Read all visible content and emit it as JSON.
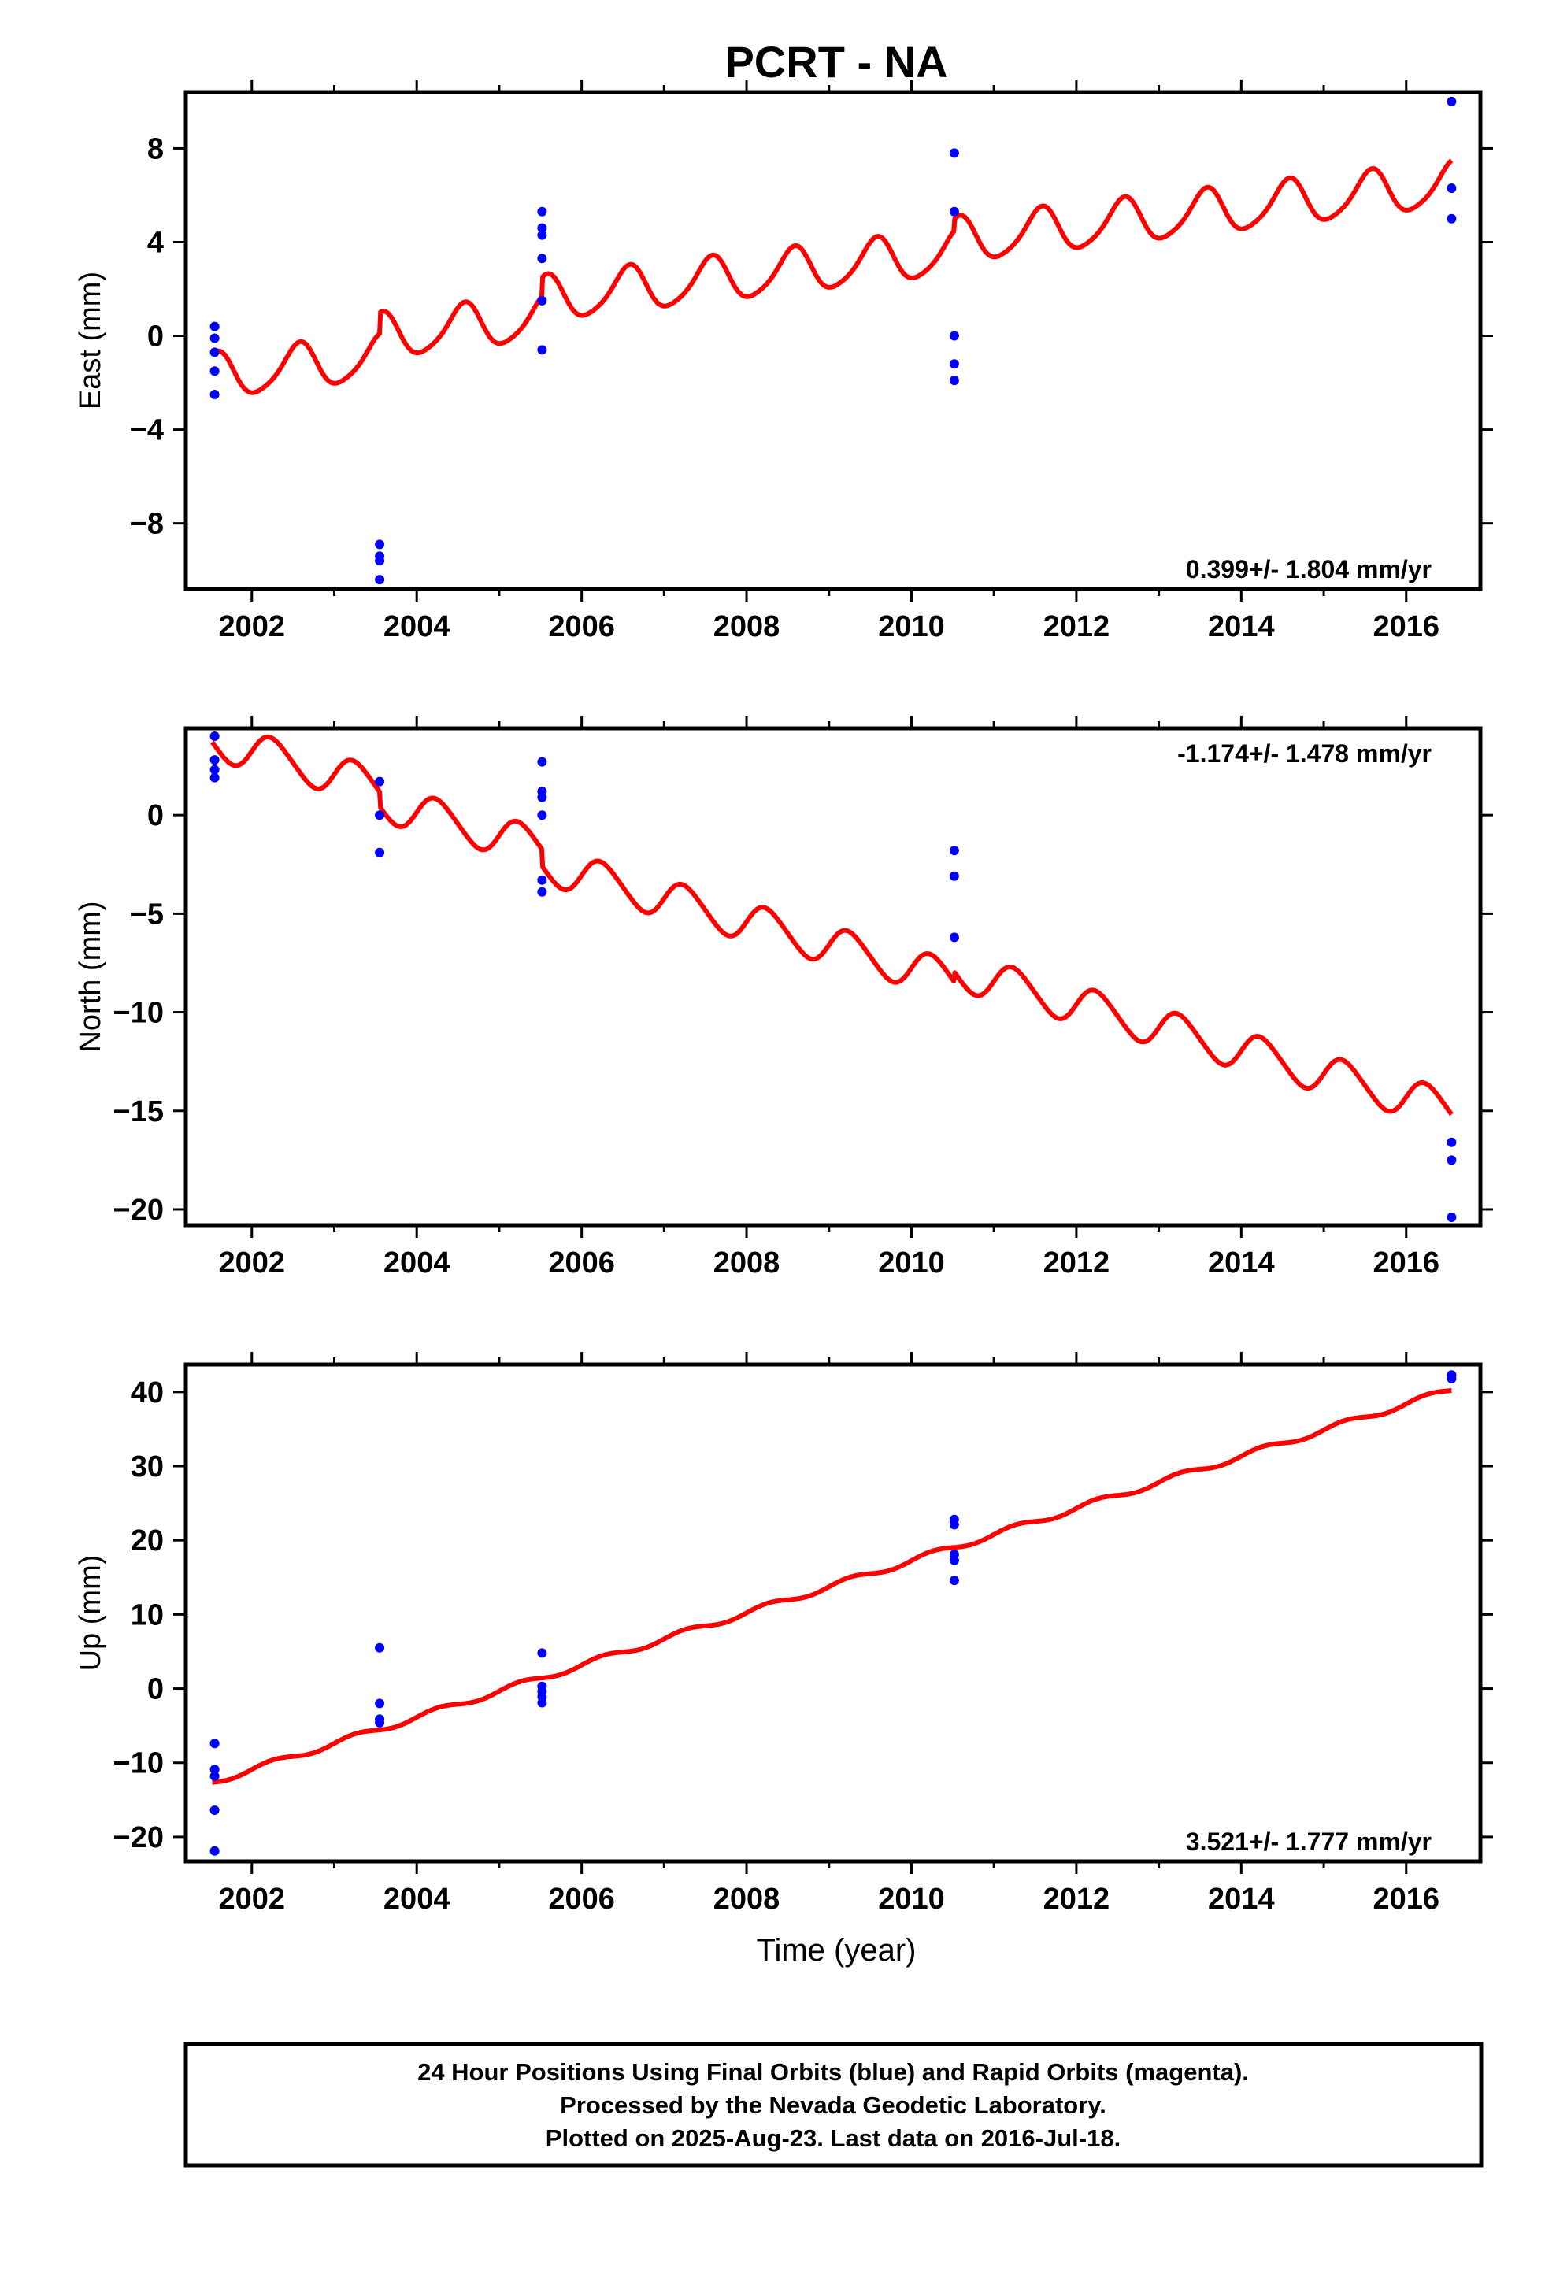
{
  "title": "PCRT - NA",
  "x_axis_label": "Time (year)",
  "footer": {
    "line1": "24 Hour Positions Using Final Orbits (blue) and Rapid Orbits (magenta).",
    "line2": "Processed by the Nevada Geodetic Laboratory.",
    "line3": "Plotted on 2025-Aug-23. Last data on 2016-Jul-18."
  },
  "colors": {
    "data_points": "#0000ff",
    "model_line": "#ff0000",
    "frame": "#000000"
  },
  "chart_data": [
    {
      "type": "scatter",
      "panel": "east",
      "ylabel": "East (mm)",
      "rate_text": "0.399+/- 1.804 mm/yr",
      "rate_position": "bottom-right",
      "xlim": [
        2001.2,
        2016.9
      ],
      "ylim": [
        -10.8,
        10.4
      ],
      "xticks": [
        2002,
        2004,
        2006,
        2008,
        2010,
        2012,
        2014,
        2016
      ],
      "xtick_labels": [
        "2002",
        "2004",
        "2006",
        "2008",
        "2010",
        "2012",
        "2014",
        "2016"
      ],
      "yticks": [
        -8,
        -4,
        0,
        4,
        8
      ],
      "ytick_labels": [
        "−8",
        "−4",
        "0",
        "4",
        "8"
      ],
      "points": [
        [
          2001.55,
          0.4
        ],
        [
          2001.55,
          -0.1
        ],
        [
          2001.55,
          -0.7
        ],
        [
          2001.55,
          -1.5
        ],
        [
          2001.55,
          -2.5
        ],
        [
          2003.55,
          -8.9
        ],
        [
          2003.55,
          -9.4
        ],
        [
          2003.55,
          -9.6
        ],
        [
          2003.55,
          -10.4
        ],
        [
          2005.52,
          5.3
        ],
        [
          2005.52,
          4.6
        ],
        [
          2005.52,
          4.3
        ],
        [
          2005.52,
          3.3
        ],
        [
          2005.52,
          1.5
        ],
        [
          2005.52,
          -0.6
        ],
        [
          2010.52,
          7.8
        ],
        [
          2010.52,
          5.3
        ],
        [
          2010.52,
          0.0
        ],
        [
          2010.52,
          -1.2
        ],
        [
          2010.52,
          -1.9
        ],
        [
          2016.55,
          10.0
        ],
        [
          2016.55,
          6.3
        ],
        [
          2016.55,
          5.0
        ]
      ],
      "model": {
        "x_range": [
          2001.52,
          2016.55
        ],
        "steps": [
          {
            "start": 2001.52,
            "end": 2003.55,
            "offset": -1.75
          },
          {
            "start": 2003.55,
            "end": 2005.52,
            "offset": -0.85
          },
          {
            "start": 2005.52,
            "end": 2010.52,
            "offset": -0.05
          },
          {
            "start": 2010.52,
            "end": 2016.55,
            "offset": 0.45
          }
        ],
        "rate_per_year": 0.399,
        "reference_year": 2001.52,
        "annual_amplitude": 0.95,
        "annual_phase": -2.0,
        "semiannual_amplitude": 0.15,
        "semiannual_phase": 0.0
      }
    },
    {
      "type": "scatter",
      "panel": "north",
      "ylabel": "North (mm)",
      "rate_text": "-1.174+/- 1.478 mm/yr",
      "rate_position": "top-right",
      "xlim": [
        2001.2,
        2016.9
      ],
      "ylim": [
        -20.8,
        4.4
      ],
      "xticks": [
        2002,
        2004,
        2006,
        2008,
        2010,
        2012,
        2014,
        2016
      ],
      "xtick_labels": [
        "2002",
        "2004",
        "2006",
        "2008",
        "2010",
        "2012",
        "2014",
        "2016"
      ],
      "yticks": [
        -20,
        -15,
        -10,
        -5,
        0
      ],
      "ytick_labels": [
        "−20",
        "−15",
        "−10",
        "−5",
        "0"
      ],
      "points": [
        [
          2001.55,
          4.0
        ],
        [
          2001.55,
          2.8
        ],
        [
          2001.55,
          2.3
        ],
        [
          2001.55,
          1.9
        ],
        [
          2003.55,
          1.7
        ],
        [
          2003.55,
          0.0
        ],
        [
          2003.55,
          -1.9
        ],
        [
          2005.52,
          2.7
        ],
        [
          2005.52,
          1.2
        ],
        [
          2005.52,
          0.9
        ],
        [
          2005.52,
          0.0
        ],
        [
          2005.52,
          -3.3
        ],
        [
          2005.52,
          -3.9
        ],
        [
          2010.52,
          -1.8
        ],
        [
          2010.52,
          -3.1
        ],
        [
          2010.52,
          -6.2
        ],
        [
          2016.55,
          -16.6
        ],
        [
          2016.55,
          -17.5
        ],
        [
          2016.55,
          -20.4
        ]
      ],
      "model": {
        "x_range": [
          2001.52,
          2016.55
        ],
        "steps": [
          {
            "start": 2001.52,
            "end": 2003.55,
            "offset": 3.8
          },
          {
            "start": 2003.55,
            "end": 2005.52,
            "offset": 3.05
          },
          {
            "start": 2005.52,
            "end": 2010.52,
            "offset": 2.2
          },
          {
            "start": 2010.52,
            "end": 2016.55,
            "offset": 2.7
          }
        ],
        "rate_per_year": -1.174,
        "reference_year": 2001.52,
        "annual_amplitude": 0.95,
        "annual_phase": 0.0,
        "semiannual_amplitude": 0.1,
        "semiannual_phase": 0.0
      }
    },
    {
      "type": "scatter",
      "panel": "up",
      "ylabel": "Up (mm)",
      "rate_text": "3.521+/- 1.777 mm/yr",
      "rate_position": "bottom-right",
      "xlim": [
        2001.2,
        2016.9
      ],
      "ylim": [
        -23.3,
        43.7
      ],
      "xticks": [
        2002,
        2004,
        2006,
        2008,
        2010,
        2012,
        2014,
        2016
      ],
      "xtick_labels": [
        "2002",
        "2004",
        "2006",
        "2008",
        "2010",
        "2012",
        "2014",
        "2016"
      ],
      "yticks": [
        -20,
        -10,
        0,
        10,
        20,
        30,
        40
      ],
      "ytick_labels": [
        "−20",
        "−10",
        "0",
        "10",
        "20",
        "30",
        "40"
      ],
      "points": [
        [
          2001.55,
          -7.4
        ],
        [
          2001.55,
          -10.9
        ],
        [
          2001.55,
          -11.8
        ],
        [
          2001.55,
          -16.4
        ],
        [
          2001.55,
          -21.9
        ],
        [
          2003.55,
          5.5
        ],
        [
          2003.55,
          -2.0
        ],
        [
          2003.55,
          -4.1
        ],
        [
          2003.55,
          -4.6
        ],
        [
          2005.52,
          4.8
        ],
        [
          2005.52,
          0.3
        ],
        [
          2005.52,
          -0.4
        ],
        [
          2005.52,
          -1.1
        ],
        [
          2005.52,
          -1.9
        ],
        [
          2010.52,
          22.8
        ],
        [
          2010.52,
          22.1
        ],
        [
          2010.52,
          18.1
        ],
        [
          2010.52,
          17.3
        ],
        [
          2010.52,
          14.6
        ],
        [
          2016.55,
          42.3
        ],
        [
          2016.55,
          41.8
        ]
      ],
      "model": {
        "x_range": [
          2001.52,
          2016.55
        ],
        "steps": [
          {
            "start": 2001.52,
            "end": 2016.55,
            "offset": -12.6
          }
        ],
        "rate_per_year": 3.521,
        "reference_year": 2001.52,
        "annual_amplitude": 0.4,
        "annual_phase": 0.0,
        "semiannual_amplitude": 0.0,
        "semiannual_phase": 0.0
      }
    }
  ]
}
